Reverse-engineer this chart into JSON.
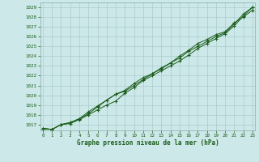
{
  "xlabel": "Graphe pression niveau de la mer (hPa)",
  "x": [
    0,
    1,
    2,
    3,
    4,
    5,
    6,
    7,
    8,
    9,
    10,
    11,
    12,
    13,
    14,
    15,
    16,
    17,
    18,
    19,
    20,
    21,
    22,
    23
  ],
  "series1": [
    1016.6,
    1016.5,
    1017.0,
    1017.1,
    1017.5,
    1018.0,
    1018.5,
    1019.0,
    1019.4,
    1020.2,
    1020.8,
    1021.5,
    1022.0,
    1022.5,
    1023.0,
    1023.5,
    1024.1,
    1024.8,
    1025.3,
    1025.8,
    1026.3,
    1027.1,
    1028.1,
    1029.0
  ],
  "series2": [
    1016.6,
    1016.5,
    1017.0,
    1017.2,
    1017.6,
    1018.1,
    1018.8,
    1019.5,
    1020.1,
    1020.4,
    1021.0,
    1021.6,
    1022.2,
    1022.7,
    1023.3,
    1023.8,
    1024.5,
    1025.0,
    1025.5,
    1026.0,
    1026.4,
    1027.3,
    1028.3,
    1029.0
  ],
  "series3": [
    1016.6,
    1016.5,
    1017.0,
    1017.2,
    1017.6,
    1018.3,
    1018.9,
    1019.5,
    1020.1,
    1020.5,
    1021.2,
    1021.8,
    1022.2,
    1022.8,
    1023.3,
    1024.0,
    1024.6,
    1025.3,
    1025.7,
    1026.2,
    1026.5,
    1027.4,
    1028.0,
    1028.7
  ],
  "line_color": "#1a5c1a",
  "bg_color": "#cce8e8",
  "grid_color": "#aacccc",
  "text_color": "#1a5c1a",
  "ylim_min": 1016.4,
  "ylim_max": 1029.5,
  "yticks": [
    1017,
    1018,
    1019,
    1020,
    1021,
    1022,
    1023,
    1024,
    1025,
    1026,
    1027,
    1028,
    1029
  ],
  "xticks": [
    0,
    1,
    2,
    3,
    4,
    5,
    6,
    7,
    8,
    9,
    10,
    11,
    12,
    13,
    14,
    15,
    16,
    17,
    18,
    19,
    20,
    21,
    22,
    23
  ]
}
